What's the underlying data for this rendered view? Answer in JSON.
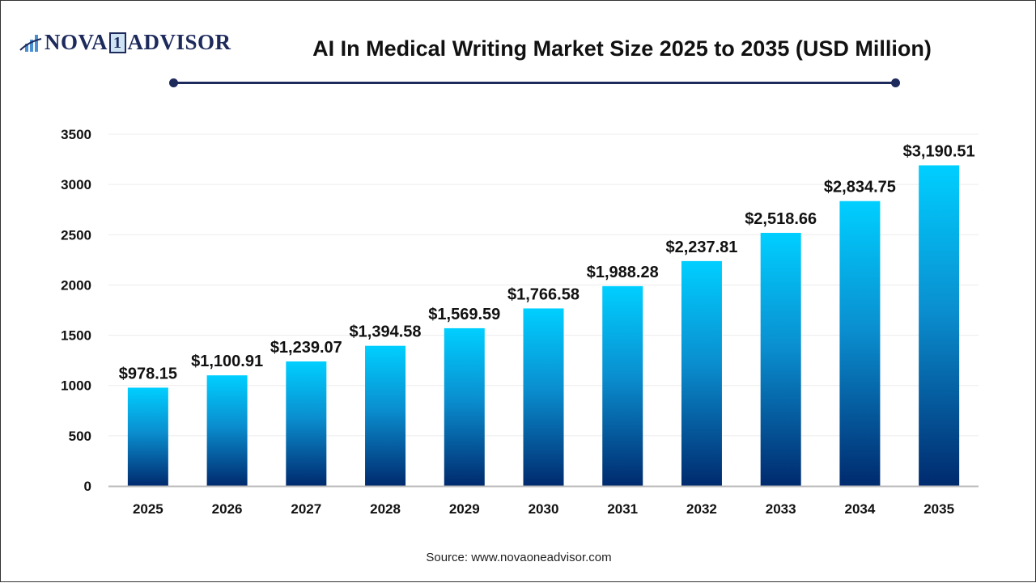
{
  "logo": {
    "text_left": "NOVA",
    "text_one": "1",
    "text_right": "ADVISOR"
  },
  "colors": {
    "bar_top": "#00cfff",
    "bar_bottom": "#002a6e",
    "accent": "#1d2a5c"
  },
  "source": "Source: www.novaoneadvisor.com",
  "chart_data": {
    "type": "bar",
    "title": "AI In Medical Writing Market Size 2025 to 2035 (USD Million)",
    "categories": [
      "2025",
      "2026",
      "2027",
      "2028",
      "2029",
      "2030",
      "2031",
      "2032",
      "2033",
      "2034",
      "2035"
    ],
    "values": [
      978.15,
      1100.91,
      1239.07,
      1394.58,
      1569.59,
      1766.58,
      1988.28,
      2237.81,
      2518.66,
      2834.75,
      3190.51
    ],
    "data_labels": [
      "$978.15",
      "$1,100.91",
      "$1,239.07",
      "$1,394.58",
      "$1,569.59",
      "$1,766.58",
      "$1,988.28",
      "$2,237.81",
      "$2,518.66",
      "$2,834.75",
      "$3,190.51"
    ],
    "ylim": [
      0,
      3500
    ],
    "yticks": [
      0,
      500,
      1000,
      1500,
      2000,
      2500,
      3000,
      3500
    ],
    "grid": true,
    "xlabel": "",
    "ylabel": ""
  }
}
